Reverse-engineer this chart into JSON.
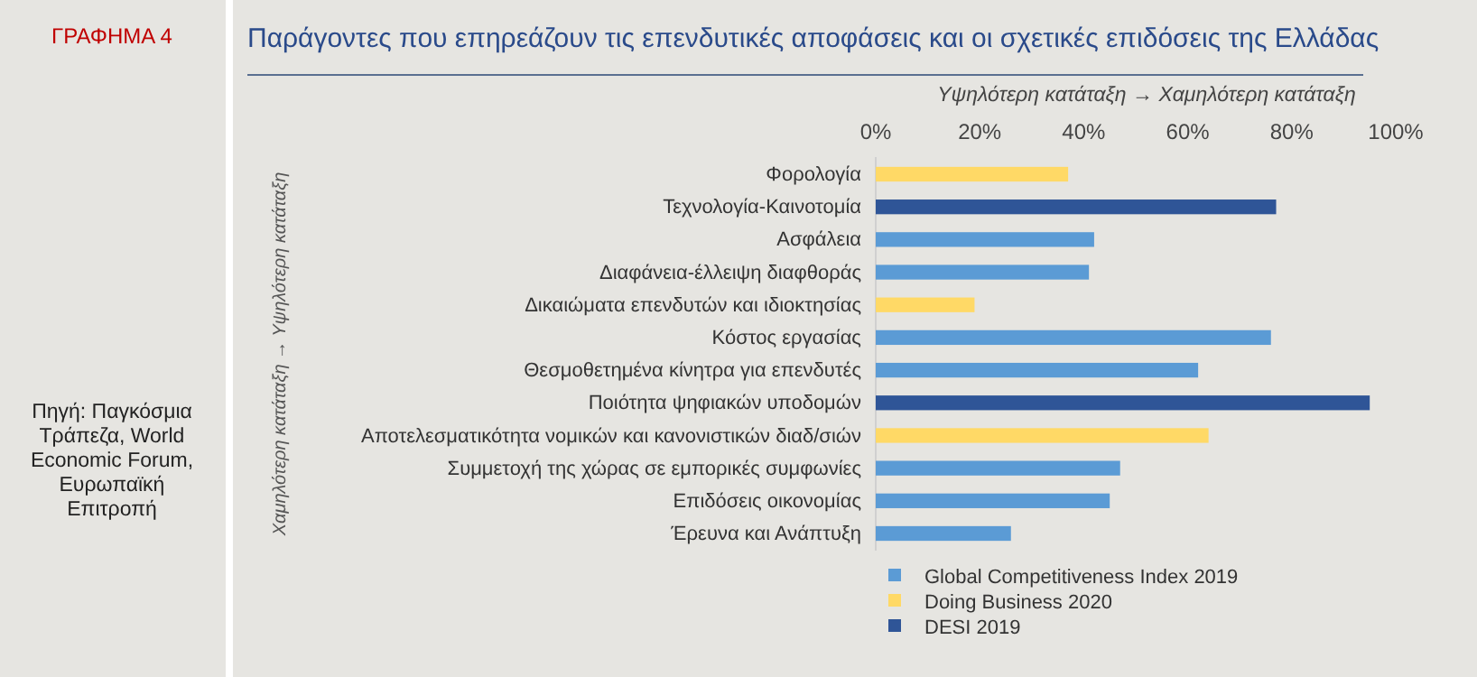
{
  "chart_data": {
    "type": "bar",
    "orientation": "horizontal",
    "title": "Παράγοντες που επηρεάζουν τις επενδυτικές αποφάσεις και οι σχετικές επιδόσεις της Ελλάδας",
    "xlabel": "Υψηλότερη κατάταξη → Χαμηλότερη κατάταξη",
    "ylabel": "Χαμηλότερη κατάταξη → Υψηλότερη κατάταξη",
    "categories": [
      "Φορολογία",
      "Τεχνολογία-Καινοτομία",
      "Ασφάλεια",
      "Διαφάνεια-έλλειψη διαφθοράς",
      "Δικαιώματα επενδυτών και ιδιοκτησίας",
      "Κόστος εργασίας",
      "Θεσμοθετημένα κίνητρα για επενδυτές",
      "Ποιότητα ψηφιακών υποδομών",
      "Αποτελεσματικότητα νομικών και κανονιστικών διαδ/σιών",
      "Συμμετοχή της χώρας σε εμπορικές συμφωνίες",
      "Επιδόσεις οικονομίας",
      "Έρευνα και Ανάπτυξη"
    ],
    "series": [
      {
        "name": "Global Competitiveness Index 2019",
        "color": "#5b9bd5",
        "values": [
          null,
          null,
          42,
          41,
          null,
          76,
          62,
          null,
          null,
          47,
          45,
          26
        ]
      },
      {
        "name": "Doing Business 2020",
        "color": "#ffd966",
        "values": [
          37,
          null,
          null,
          null,
          19,
          null,
          null,
          null,
          64,
          null,
          null,
          null
        ]
      },
      {
        "name": "DESI 2019",
        "color": "#2f5597",
        "values": [
          null,
          77,
          null,
          null,
          null,
          null,
          null,
          95,
          null,
          null,
          null,
          null
        ]
      }
    ],
    "xlim": [
      0,
      100
    ],
    "xticks": [
      {
        "value": 0,
        "label": "0%"
      },
      {
        "value": 20,
        "label": "20%"
      },
      {
        "value": 40,
        "label": "40%"
      },
      {
        "value": 60,
        "label": "60%"
      },
      {
        "value": 80,
        "label": "80%"
      },
      {
        "value": 100,
        "label": "100%"
      }
    ],
    "legend": "bottom",
    "annotations": [
      "ΓΡΑΦΗΜΑ 4",
      "Πηγή: Παγκόσμια Τράπεζα, World Economic Forum, Ευρωπαϊκή Επιτροπή"
    ]
  }
}
